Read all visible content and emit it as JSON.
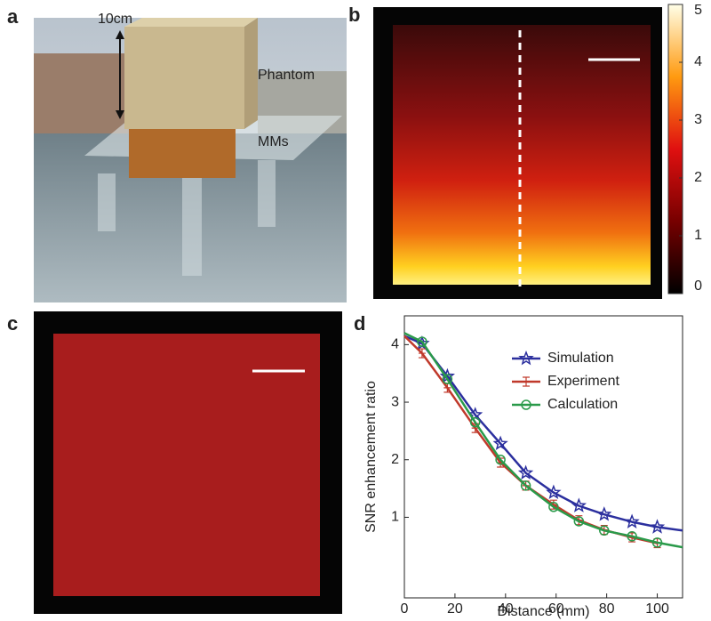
{
  "panels": {
    "a": {
      "label": "a",
      "annotations": [
        "10cm",
        "Phantom",
        "MMs"
      ]
    },
    "b": {
      "label": "b",
      "colorbar": {
        "lim": [
          0,
          5
        ],
        "ticks": [
          0,
          1,
          2,
          3,
          4,
          5
        ]
      }
    },
    "c": {
      "label": "c"
    },
    "d": {
      "label": "d"
    }
  },
  "chart_data": {
    "type": "line",
    "xlabel": "Distance (mm)",
    "ylabel": "SNR enhancement ratio",
    "x": [
      0,
      7,
      17,
      28,
      38,
      48,
      59,
      69,
      79,
      90,
      100,
      110
    ],
    "xlim": [
      0,
      110
    ],
    "xticks": [
      0,
      20,
      40,
      60,
      80,
      100
    ],
    "ylim": [
      -0.4,
      4.5
    ],
    "yticks": [
      1,
      2,
      3,
      4
    ],
    "legend": "upper right",
    "series": [
      {
        "name": "Simulation",
        "color": "#2b2f9e",
        "marker": "star",
        "values": [
          4.15,
          4.02,
          3.45,
          2.78,
          2.28,
          1.77,
          1.43,
          1.2,
          1.05,
          0.92,
          0.83,
          0.77
        ]
      },
      {
        "name": "Experiment",
        "color": "#c0392b",
        "marker": "errorbar",
        "values": [
          4.15,
          3.85,
          3.25,
          2.55,
          1.95,
          1.55,
          1.22,
          0.95,
          0.78,
          0.65,
          0.55,
          null
        ]
      },
      {
        "name": "Calculation",
        "color": "#2a9a4a",
        "marker": "circle",
        "values": [
          4.2,
          4.05,
          3.4,
          2.65,
          2.0,
          1.55,
          1.18,
          0.93,
          0.77,
          0.67,
          0.56,
          0.48
        ]
      }
    ]
  }
}
